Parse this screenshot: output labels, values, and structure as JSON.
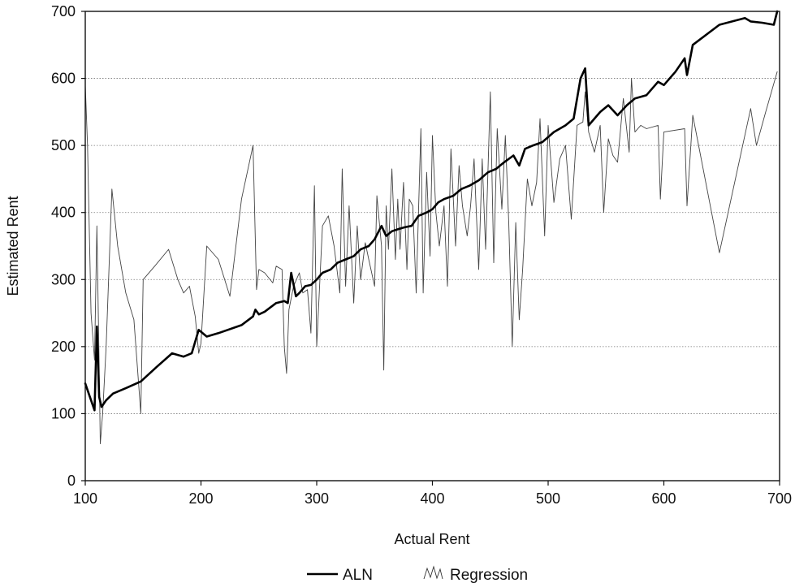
{
  "chart_data": {
    "type": "line",
    "title": "",
    "xlabel": "Actual Rent",
    "ylabel": "Estimated Rent",
    "xlim": [
      100,
      700
    ],
    "ylim": [
      0,
      700
    ],
    "x_ticks": [
      100,
      200,
      300,
      400,
      500,
      600,
      700
    ],
    "y_ticks": [
      0,
      100,
      200,
      300,
      400,
      500,
      600,
      700
    ],
    "grid": "horizontal dotted",
    "legend_position": "bottom-center",
    "series": [
      {
        "name": "ALN",
        "color": "#000000",
        "style": "thick",
        "x": [
          100,
          104,
          108,
          110,
          112,
          114,
          118,
          124,
          135,
          148,
          162,
          175,
          185,
          192,
          198,
          205,
          215,
          235,
          245,
          247,
          250,
          255,
          265,
          272,
          275,
          278,
          282,
          285,
          290,
          295,
          300,
          305,
          312,
          318,
          325,
          332,
          338,
          345,
          350,
          356,
          360,
          365,
          370,
          376,
          382,
          388,
          395,
          400,
          405,
          410,
          418,
          425,
          432,
          440,
          448,
          455,
          462,
          470,
          475,
          480,
          487,
          495,
          505,
          515,
          522,
          528,
          532,
          535,
          540,
          545,
          552,
          560,
          568,
          575,
          585,
          595,
          600,
          610,
          618,
          620,
          625,
          648,
          670,
          675,
          685,
          695,
          698
        ],
        "values": [
          145,
          125,
          105,
          230,
          125,
          110,
          120,
          130,
          138,
          148,
          170,
          190,
          185,
          190,
          225,
          215,
          220,
          232,
          245,
          255,
          248,
          252,
          265,
          268,
          265,
          310,
          275,
          280,
          290,
          292,
          300,
          310,
          315,
          325,
          330,
          335,
          345,
          350,
          360,
          380,
          365,
          372,
          375,
          378,
          380,
          395,
          400,
          405,
          415,
          420,
          425,
          435,
          440,
          448,
          460,
          465,
          475,
          485,
          470,
          495,
          500,
          505,
          520,
          530,
          540,
          600,
          615,
          530,
          540,
          550,
          560,
          545,
          560,
          570,
          575,
          595,
          590,
          610,
          630,
          605,
          650,
          680,
          690,
          685,
          683,
          680,
          700
        ]
      },
      {
        "name": "Regression",
        "color": "#444444",
        "style": "thin",
        "x": [
          100,
          102,
          105,
          108,
          110,
          112,
          113,
          115,
          118,
          123,
          128,
          135,
          142,
          148,
          150,
          160,
          172,
          180,
          185,
          190,
          195,
          198,
          200,
          205,
          215,
          225,
          235,
          245,
          248,
          250,
          255,
          262,
          265,
          270,
          272,
          274,
          276,
          280,
          285,
          288,
          292,
          295,
          298,
          300,
          305,
          310,
          315,
          320,
          322,
          325,
          328,
          332,
          335,
          338,
          342,
          345,
          350,
          352,
          356,
          358,
          360,
          362,
          365,
          368,
          370,
          372,
          375,
          378,
          380,
          383,
          386,
          390,
          392,
          395,
          398,
          400,
          403,
          406,
          410,
          413,
          416,
          420,
          423,
          426,
          430,
          433,
          436,
          440,
          443,
          446,
          450,
          453,
          456,
          460,
          463,
          466,
          469,
          472,
          475,
          478,
          482,
          486,
          490,
          493,
          497,
          500,
          505,
          510,
          515,
          520,
          525,
          530,
          532,
          535,
          540,
          545,
          548,
          552,
          556,
          560,
          565,
          570,
          572,
          575,
          580,
          585,
          595,
          597,
          600,
          618,
          620,
          625,
          648,
          675,
          680,
          688,
          698
        ],
        "values": [
          590,
          500,
          250,
          180,
          380,
          170,
          55,
          100,
          200,
          435,
          350,
          280,
          240,
          100,
          300,
          320,
          345,
          300,
          280,
          290,
          245,
          190,
          205,
          350,
          330,
          275,
          420,
          500,
          285,
          315,
          310,
          295,
          320,
          315,
          200,
          160,
          255,
          290,
          310,
          280,
          285,
          220,
          440,
          200,
          380,
          395,
          350,
          280,
          465,
          290,
          410,
          265,
          380,
          300,
          355,
          330,
          290,
          425,
          350,
          165,
          410,
          345,
          465,
          330,
          420,
          345,
          445,
          315,
          420,
          410,
          280,
          525,
          280,
          460,
          335,
          515,
          400,
          350,
          410,
          290,
          495,
          350,
          470,
          410,
          365,
          410,
          480,
          315,
          480,
          345,
          580,
          325,
          525,
          405,
          515,
          385,
          200,
          385,
          240,
          315,
          450,
          410,
          445,
          540,
          365,
          530,
          415,
          480,
          500,
          390,
          530,
          535,
          580,
          520,
          490,
          530,
          400,
          510,
          485,
          475,
          570,
          490,
          600,
          520,
          530,
          525,
          530,
          420,
          520,
          525,
          410,
          545,
          340,
          555,
          500,
          550,
          610
        ]
      }
    ]
  }
}
